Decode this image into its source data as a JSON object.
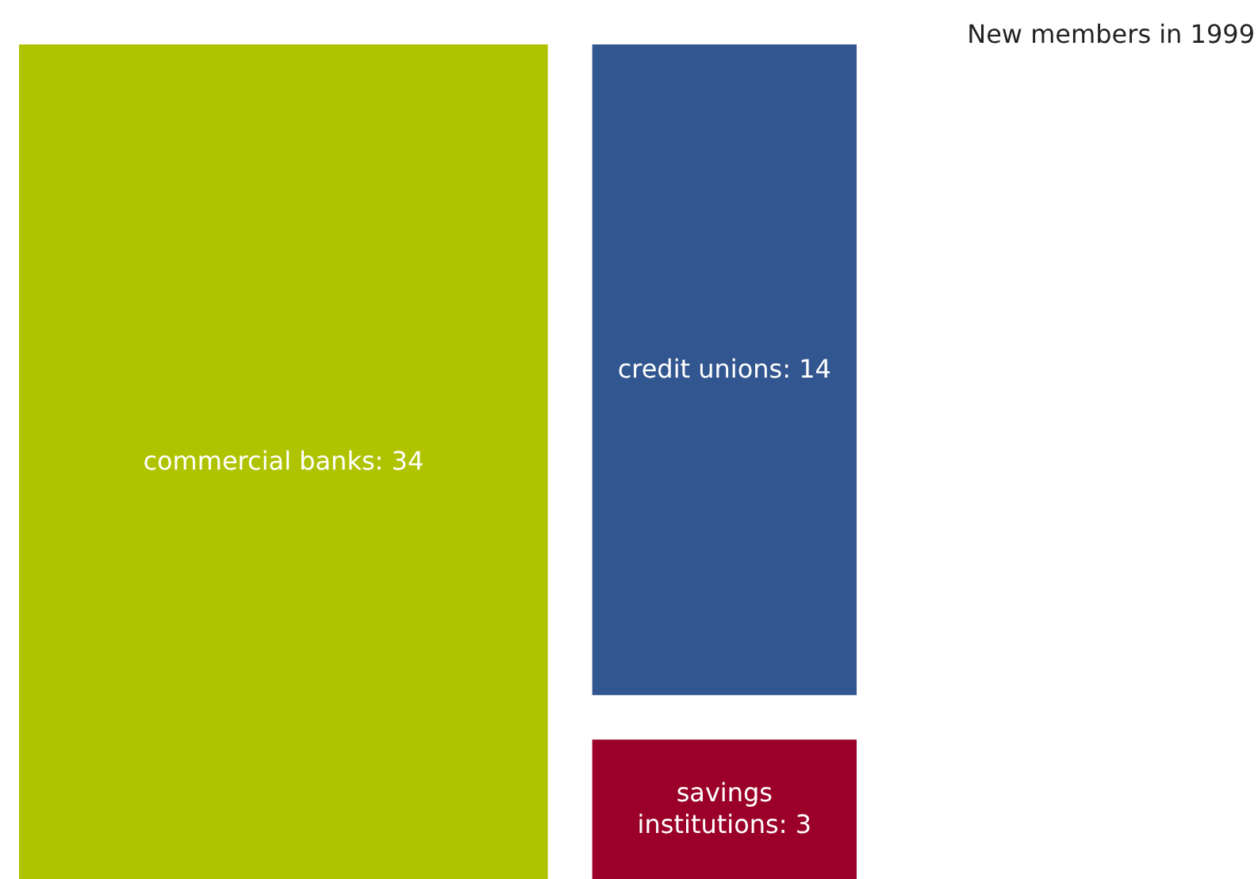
{
  "chart_data": {
    "type": "other",
    "title": "New members in 1999",
    "categories": [
      "commercial banks",
      "credit unions",
      "savings institutions"
    ],
    "values": [
      34,
      14,
      3
    ],
    "colors": [
      "#afc300",
      "#32568f",
      "#9b0028"
    ],
    "value_labels": [
      ": 34",
      ": 14",
      ": 3"
    ]
  }
}
